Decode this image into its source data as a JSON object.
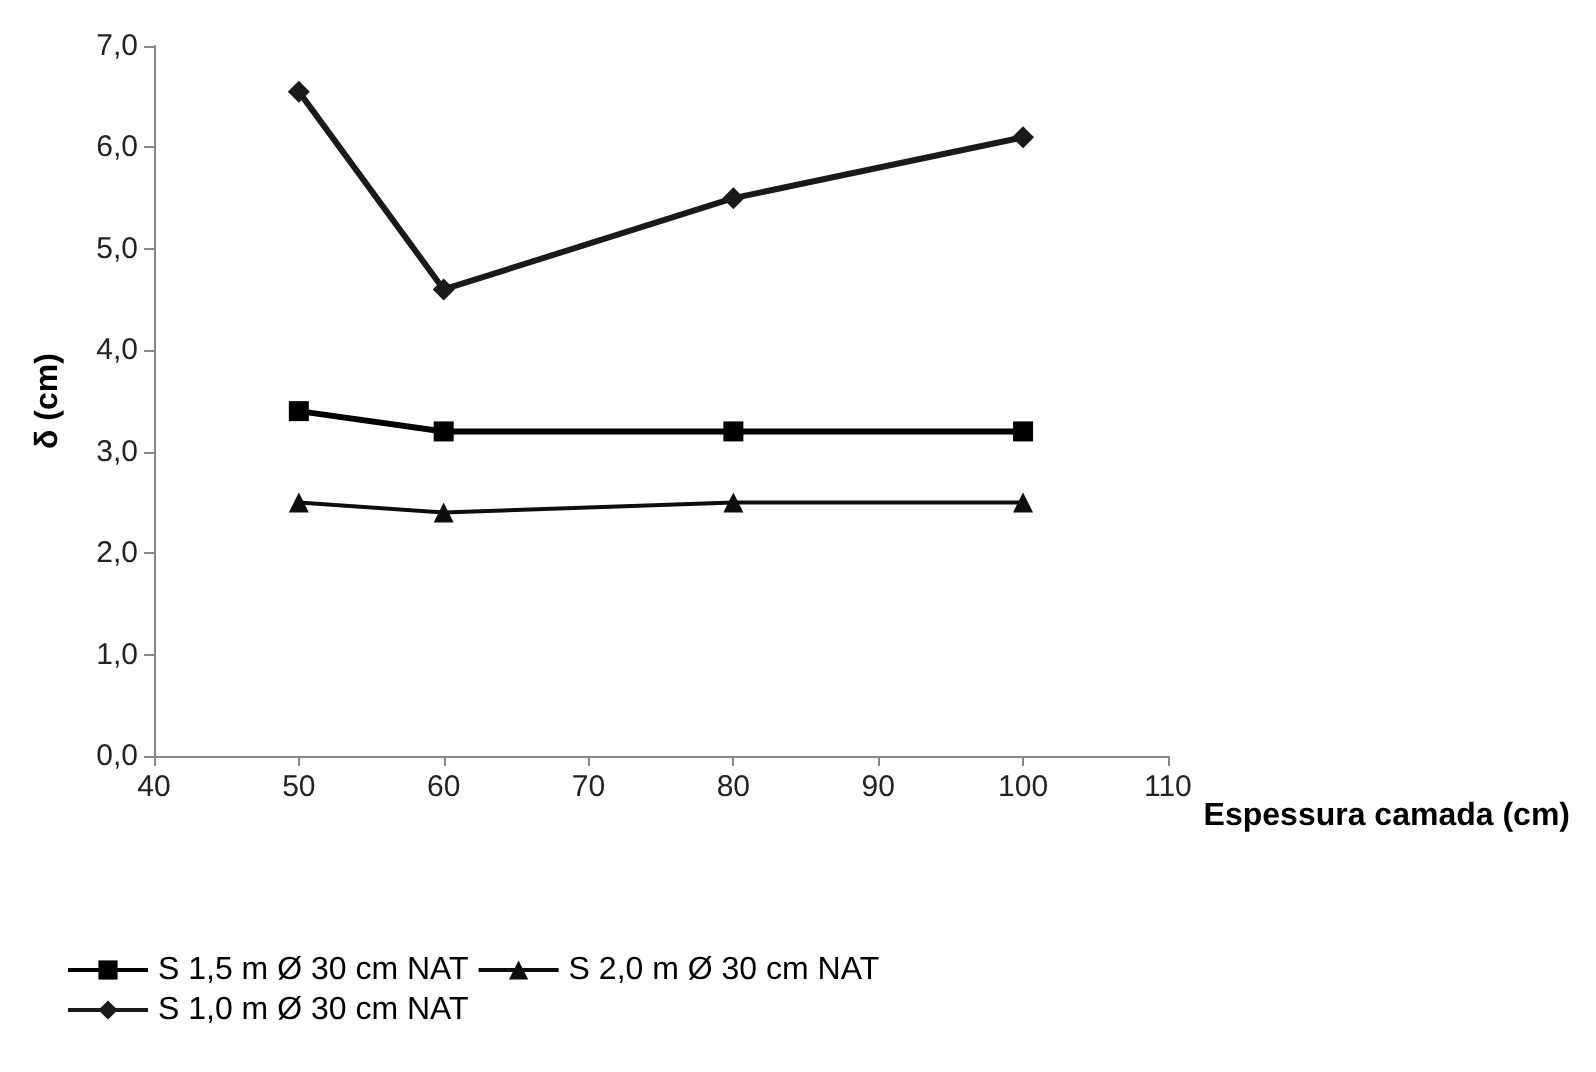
{
  "chart_data": {
    "type": "line",
    "xlabel": "Espessura camada (cm)",
    "ylabel": "δ (cm)",
    "x": [
      50,
      60,
      80,
      100
    ],
    "series": [
      {
        "name": "S 1,5 m Ø 30 cm NAT",
        "color": "#000000",
        "marker": "square",
        "values": [
          3.4,
          3.2,
          3.2,
          3.2
        ]
      },
      {
        "name": "S 2,0 m Ø 30 cm NAT",
        "color": "#0d0d0d",
        "marker": "triangle",
        "values": [
          2.5,
          2.4,
          2.5,
          2.5
        ]
      },
      {
        "name": "S 1,0 m Ø 30 cm NAT",
        "color": "#1a1a1a",
        "marker": "diamond",
        "values": [
          6.55,
          4.6,
          5.5,
          6.1
        ]
      }
    ],
    "xlim": [
      40,
      110
    ],
    "xticks": [
      40,
      50,
      60,
      70,
      80,
      90,
      100,
      110
    ],
    "ylim": [
      0,
      7
    ],
    "yticks": [
      {
        "value": 0,
        "label": "0,0"
      },
      {
        "value": 1,
        "label": "1,0"
      },
      {
        "value": 2,
        "label": "2,0"
      },
      {
        "value": 3,
        "label": "3,0"
      },
      {
        "value": 4,
        "label": "4,0"
      },
      {
        "value": 5,
        "label": "5,0"
      },
      {
        "value": 6,
        "label": "6,0"
      },
      {
        "value": 7,
        "label": "7,0"
      }
    ],
    "legend": "bottom"
  }
}
